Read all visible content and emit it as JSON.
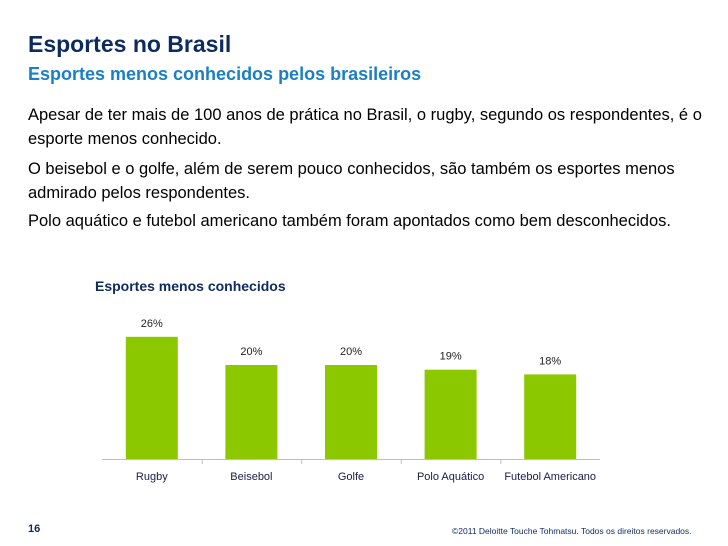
{
  "header": {
    "title": "Esportes no Brasil",
    "subtitle": "Esportes menos conhecidos pelos brasileiros"
  },
  "body": {
    "paragraphs": [
      "Apesar de ter mais de 100 anos de prática no Brasil, o rugby, segundo os respondentes, é o esporte menos conhecido.",
      "O beisebol e o golfe, além de serem pouco conhecidos, são também os esportes menos admirado pelos respondentes.",
      "Polo aquático e futebol americano também foram apontados como bem desconhecidos."
    ]
  },
  "chart_data": {
    "type": "bar",
    "title": "Esportes menos conhecidos",
    "categories": [
      "Rugby",
      "Beisebol",
      "Golfe",
      "Polo Aquático",
      "Futebol Americano"
    ],
    "values": [
      26,
      20,
      20,
      19,
      18
    ],
    "value_labels": [
      "26%",
      "20%",
      "20%",
      "19%",
      "18%"
    ],
    "unit": "%",
    "ylim": [
      0,
      30
    ],
    "xlabel": "",
    "ylabel": "",
    "grid": false,
    "legend": "none",
    "bar_color": "#8cc800"
  },
  "footer": {
    "page_number": "16",
    "copyright": "©2011 Deloitte Touche Tohmatsu. Todos os direitos reservados."
  },
  "colors": {
    "title": "#0d2b5e",
    "subtitle": "#1a7fc4",
    "bar": "#8cc800"
  }
}
